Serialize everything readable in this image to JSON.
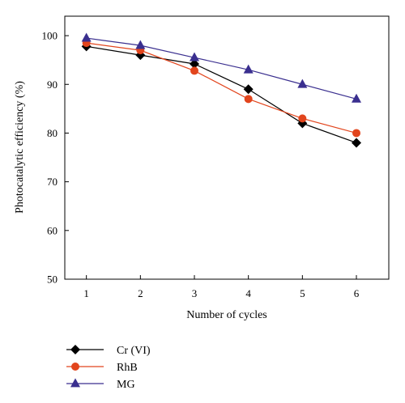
{
  "chart_data": {
    "type": "line",
    "title": "",
    "xlabel": "Number of cycles",
    "ylabel": "Photocatalytic efficiency (%)",
    "x": [
      1,
      2,
      3,
      4,
      5,
      6
    ],
    "xlim": [
      0.6,
      6.6
    ],
    "ylim": [
      50,
      104
    ],
    "xticks": [
      1,
      2,
      3,
      4,
      5,
      6
    ],
    "yticks": [
      50,
      60,
      70,
      80,
      90,
      100
    ],
    "grid": false,
    "legend_position": "bottom-left, below plot",
    "series": [
      {
        "name": "Cr (VI)",
        "values": [
          97.8,
          96.0,
          94.2,
          89.0,
          82.0,
          78.0
        ],
        "color": "#000000",
        "marker": "diamond"
      },
      {
        "name": "RhB",
        "values": [
          98.5,
          97.0,
          92.8,
          87.0,
          83.0,
          80.0
        ],
        "color": "#e2451d",
        "marker": "circle"
      },
      {
        "name": "MG",
        "values": [
          99.5,
          98.0,
          95.5,
          93.0,
          90.0,
          87.0
        ],
        "color": "#3a2f8f",
        "marker": "triangle"
      }
    ]
  }
}
